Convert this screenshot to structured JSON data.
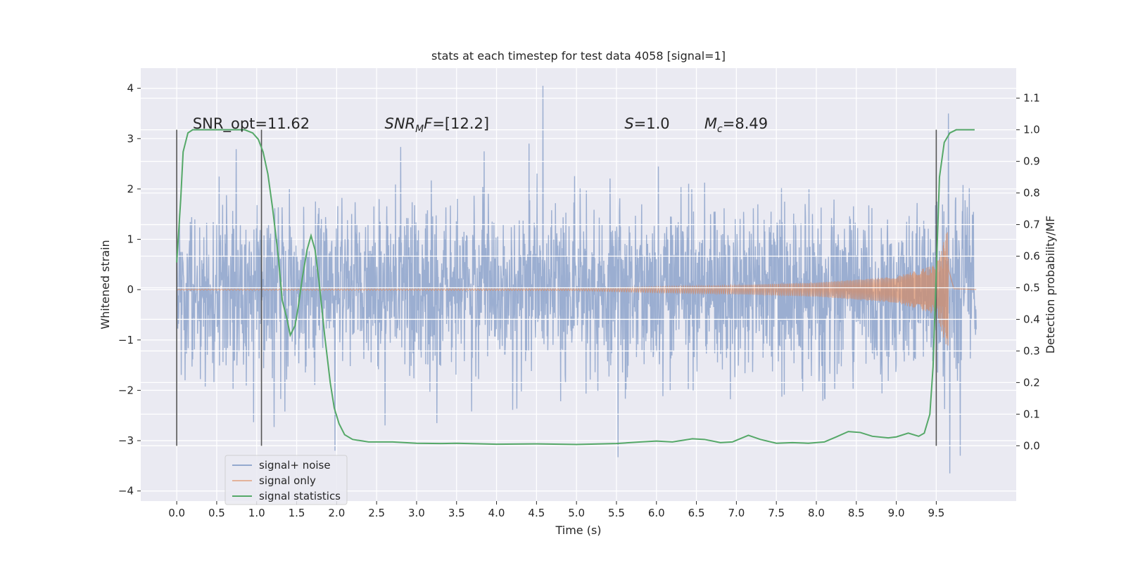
{
  "chart_data": {
    "type": "line",
    "title": "stats at each timestep for test data 4058 [signal=1]",
    "xlabel": "Time (s)",
    "ylabel_left": "Whitened strain",
    "ylabel_right": "Detection probability/MF",
    "xlim": [
      -0.45,
      10.5
    ],
    "ylim_left": [
      -4.2,
      4.4
    ],
    "ylim_right": [
      -0.175,
      1.195
    ],
    "x_ticks": [
      "0.0",
      "0.5",
      "1.0",
      "1.5",
      "2.0",
      "2.5",
      "3.0",
      "3.5",
      "4.0",
      "4.5",
      "5.0",
      "5.5",
      "6.0",
      "6.5",
      "7.0",
      "7.5",
      "8.0",
      "8.5",
      "9.0",
      "9.5"
    ],
    "y_ticks_left": [
      "−4",
      "−3",
      "−2",
      "−1",
      "0",
      "1",
      "2",
      "3",
      "4"
    ],
    "y_ticks_right": [
      "0.0",
      "0.1",
      "0.2",
      "0.3",
      "0.4",
      "0.5",
      "0.6",
      "0.7",
      "0.8",
      "0.9",
      "1.0",
      "1.1"
    ],
    "grid": true,
    "legend_position": "lower-left",
    "annotations": [
      {
        "text": "SNR_opt=11.62"
      },
      {
        "text": "SNR",
        "sub": "M",
        "rest": "F=[12.2]"
      },
      {
        "text": "S",
        "rest": "=1.0"
      },
      {
        "text": "M",
        "sub": "c",
        "rest": "=8.49"
      }
    ],
    "vertical_lines_x": [
      0.0,
      1.06,
      9.5
    ],
    "series": [
      {
        "name": "signal+ noise",
        "color": "#4c72b0",
        "axis": "left",
        "x_range": [
          0.0,
          10.0
        ],
        "noise_sigma": 0.85,
        "notable_peaks": [
          {
            "x": 4.58,
            "y": 4.05
          },
          {
            "x": 9.65,
            "y": 3.5
          },
          {
            "x": 5.52,
            "y": -3.33
          },
          {
            "x": 9.67,
            "y": -3.65
          },
          {
            "x": 1.98,
            "y": -3.2
          },
          {
            "x": 9.8,
            "y": -3.3
          }
        ]
      },
      {
        "name": "signal only",
        "color": "#dd8452",
        "axis": "left",
        "x_range": [
          0.0,
          10.0
        ],
        "chirp_merger_time": 9.65,
        "peak_amplitude": 1.25,
        "envelope_points": [
          [
            0.0,
            0.01
          ],
          [
            5.0,
            0.02
          ],
          [
            6.0,
            0.06
          ],
          [
            7.0,
            0.09
          ],
          [
            8.0,
            0.14
          ],
          [
            9.0,
            0.26
          ],
          [
            9.5,
            0.5
          ],
          [
            9.65,
            1.25
          ],
          [
            9.72,
            0.05
          ],
          [
            10.0,
            0.01
          ]
        ]
      },
      {
        "name": "signal statistics",
        "color": "#55a868",
        "axis": "right",
        "points": [
          [
            0.0,
            0.58
          ],
          [
            0.05,
            0.78
          ],
          [
            0.08,
            0.93
          ],
          [
            0.14,
            0.99
          ],
          [
            0.2,
            1.0
          ],
          [
            0.4,
            1.0
          ],
          [
            0.6,
            1.0
          ],
          [
            0.85,
            1.0
          ],
          [
            0.95,
            0.99
          ],
          [
            1.02,
            0.97
          ],
          [
            1.08,
            0.93
          ],
          [
            1.14,
            0.86
          ],
          [
            1.2,
            0.75
          ],
          [
            1.27,
            0.6
          ],
          [
            1.32,
            0.46
          ],
          [
            1.38,
            0.4
          ],
          [
            1.42,
            0.35
          ],
          [
            1.48,
            0.38
          ],
          [
            1.52,
            0.44
          ],
          [
            1.57,
            0.53
          ],
          [
            1.63,
            0.62
          ],
          [
            1.68,
            0.665
          ],
          [
            1.73,
            0.62
          ],
          [
            1.78,
            0.52
          ],
          [
            1.85,
            0.35
          ],
          [
            1.92,
            0.2
          ],
          [
            1.97,
            0.12
          ],
          [
            2.03,
            0.07
          ],
          [
            2.1,
            0.035
          ],
          [
            2.2,
            0.02
          ],
          [
            2.4,
            0.012
          ],
          [
            2.7,
            0.012
          ],
          [
            3.0,
            0.008
          ],
          [
            3.3,
            0.007
          ],
          [
            3.5,
            0.008
          ],
          [
            4.0,
            0.005
          ],
          [
            4.5,
            0.006
          ],
          [
            5.0,
            0.004
          ],
          [
            5.5,
            0.007
          ],
          [
            5.8,
            0.012
          ],
          [
            6.0,
            0.015
          ],
          [
            6.2,
            0.012
          ],
          [
            6.45,
            0.022
          ],
          [
            6.6,
            0.02
          ],
          [
            6.8,
            0.01
          ],
          [
            6.95,
            0.012
          ],
          [
            7.15,
            0.033
          ],
          [
            7.3,
            0.02
          ],
          [
            7.5,
            0.008
          ],
          [
            7.7,
            0.01
          ],
          [
            7.9,
            0.008
          ],
          [
            8.1,
            0.012
          ],
          [
            8.25,
            0.028
          ],
          [
            8.4,
            0.045
          ],
          [
            8.55,
            0.042
          ],
          [
            8.7,
            0.03
          ],
          [
            8.9,
            0.025
          ],
          [
            9.0,
            0.028
          ],
          [
            9.15,
            0.04
          ],
          [
            9.28,
            0.03
          ],
          [
            9.35,
            0.04
          ],
          [
            9.42,
            0.1
          ],
          [
            9.46,
            0.25
          ],
          [
            9.5,
            0.55
          ],
          [
            9.54,
            0.85
          ],
          [
            9.6,
            0.96
          ],
          [
            9.67,
            0.99
          ],
          [
            9.75,
            1.0
          ],
          [
            9.98,
            1.0
          ]
        ]
      }
    ]
  }
}
